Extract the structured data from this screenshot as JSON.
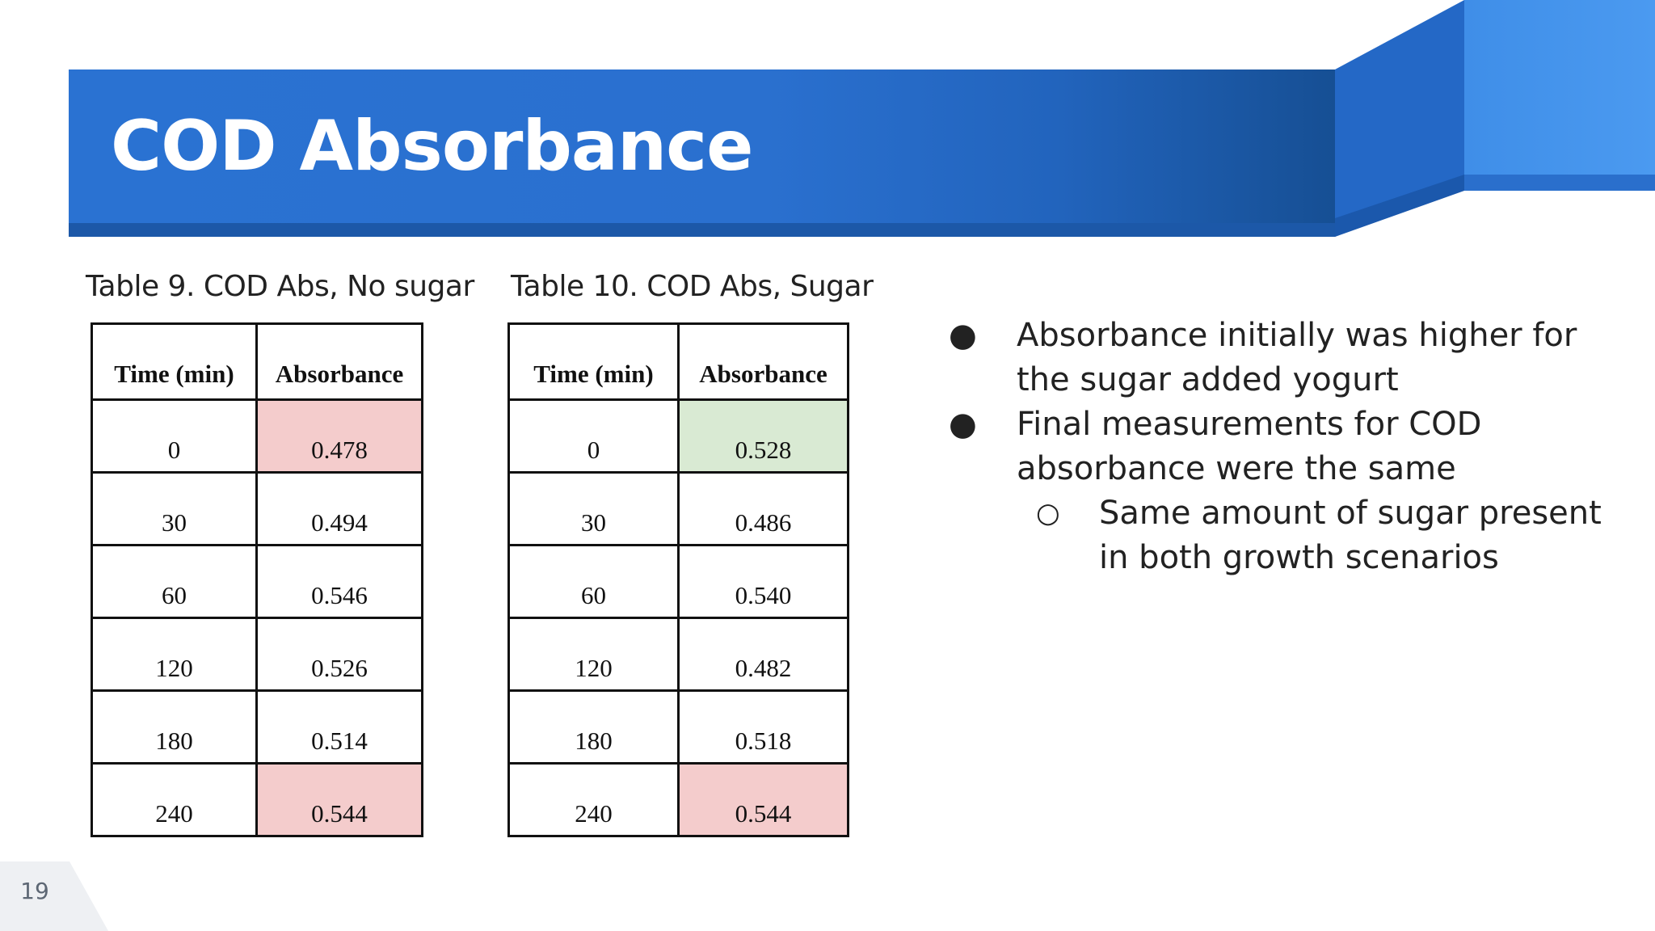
{
  "slide": {
    "title": "COD Absorbance",
    "page_number": "19",
    "colors": {
      "banner_blue": "#2a70cf",
      "highlight_red": "#f4cccc",
      "highlight_green": "#d9ead3"
    }
  },
  "table1": {
    "caption": "Table 9. COD Abs, No sugar",
    "headers": [
      "Time (min)",
      "Absorbance"
    ],
    "rows": [
      {
        "time": "0",
        "absorbance": "0.478",
        "highlight": "red"
      },
      {
        "time": "30",
        "absorbance": "0.494",
        "highlight": "none"
      },
      {
        "time": "60",
        "absorbance": "0.546",
        "highlight": "none"
      },
      {
        "time": "120",
        "absorbance": "0.526",
        "highlight": "none"
      },
      {
        "time": "180",
        "absorbance": "0.514",
        "highlight": "none"
      },
      {
        "time": "240",
        "absorbance": "0.544",
        "highlight": "red"
      }
    ]
  },
  "table2": {
    "caption": "Table 10. COD Abs,  Sugar",
    "headers": [
      "Time (min)",
      "Absorbance"
    ],
    "rows": [
      {
        "time": "0",
        "absorbance": "0.528",
        "highlight": "green"
      },
      {
        "time": "30",
        "absorbance": "0.486",
        "highlight": "none"
      },
      {
        "time": "60",
        "absorbance": "0.540",
        "highlight": "none"
      },
      {
        "time": "120",
        "absorbance": "0.482",
        "highlight": "none"
      },
      {
        "time": "180",
        "absorbance": "0.518",
        "highlight": "none"
      },
      {
        "time": "240",
        "absorbance": "0.544",
        "highlight": "red"
      }
    ]
  },
  "bullets": [
    {
      "level": 1,
      "symbol": "●",
      "lines": [
        "Absorbance initially was higher for",
        "the sugar added yogurt"
      ]
    },
    {
      "level": 1,
      "symbol": "●",
      "lines": [
        "Final measurements for COD",
        "absorbance were the same"
      ]
    },
    {
      "level": 2,
      "symbol": "○",
      "lines": [
        "Same amount of sugar present",
        "in both growth scenarios"
      ]
    }
  ]
}
